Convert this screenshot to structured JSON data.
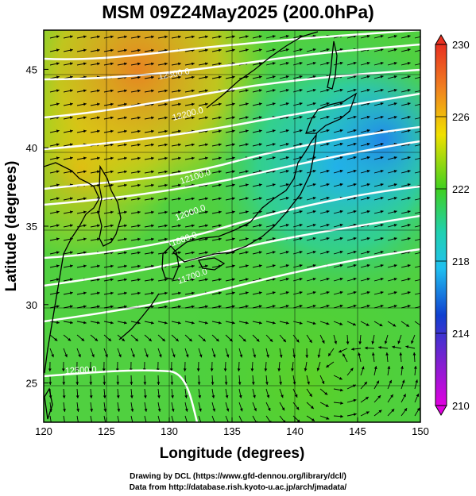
{
  "title": "MSM 09Z24May2025 (200.0hPa)",
  "xlabel": "Longitude (degrees)",
  "ylabel": "Latitude  (degrees)",
  "lon_ticks": [
    "120",
    "125",
    "130",
    "135",
    "140",
    "145",
    "150"
  ],
  "lat_ticks": [
    "25",
    "30",
    "35",
    "40",
    "45"
  ],
  "colorbar_ticks": [
    "230",
    "226",
    "222",
    "218",
    "214",
    "210"
  ],
  "contour_labels": [
    "12500.0",
    "12200.0",
    "12100.0",
    "12000.0",
    "11800.0",
    "11700.0",
    "12500.0"
  ],
  "credits": {
    "line1": "Drawing by DCL (https://www.gfd-dennou.org/library/dcl/)",
    "line2": "Data from http://database.rish.kyoto-u.ac.jp/arch/jmadata/"
  },
  "colors": {
    "shade_low": "#e000e0",
    "shade_mid_low": "#1040d0",
    "shade_mid": "#20d0e0",
    "shade_mid_high": "#40d020",
    "shade_high": "#f0e000",
    "shade_top": "#e83020",
    "contours": "#ffffff",
    "vectors": "#000000"
  },
  "map_extent": {
    "lon": [
      120,
      150
    ],
    "lat": [
      22.5,
      47.5
    ]
  },
  "colorbar_range": [
    210,
    230
  ]
}
